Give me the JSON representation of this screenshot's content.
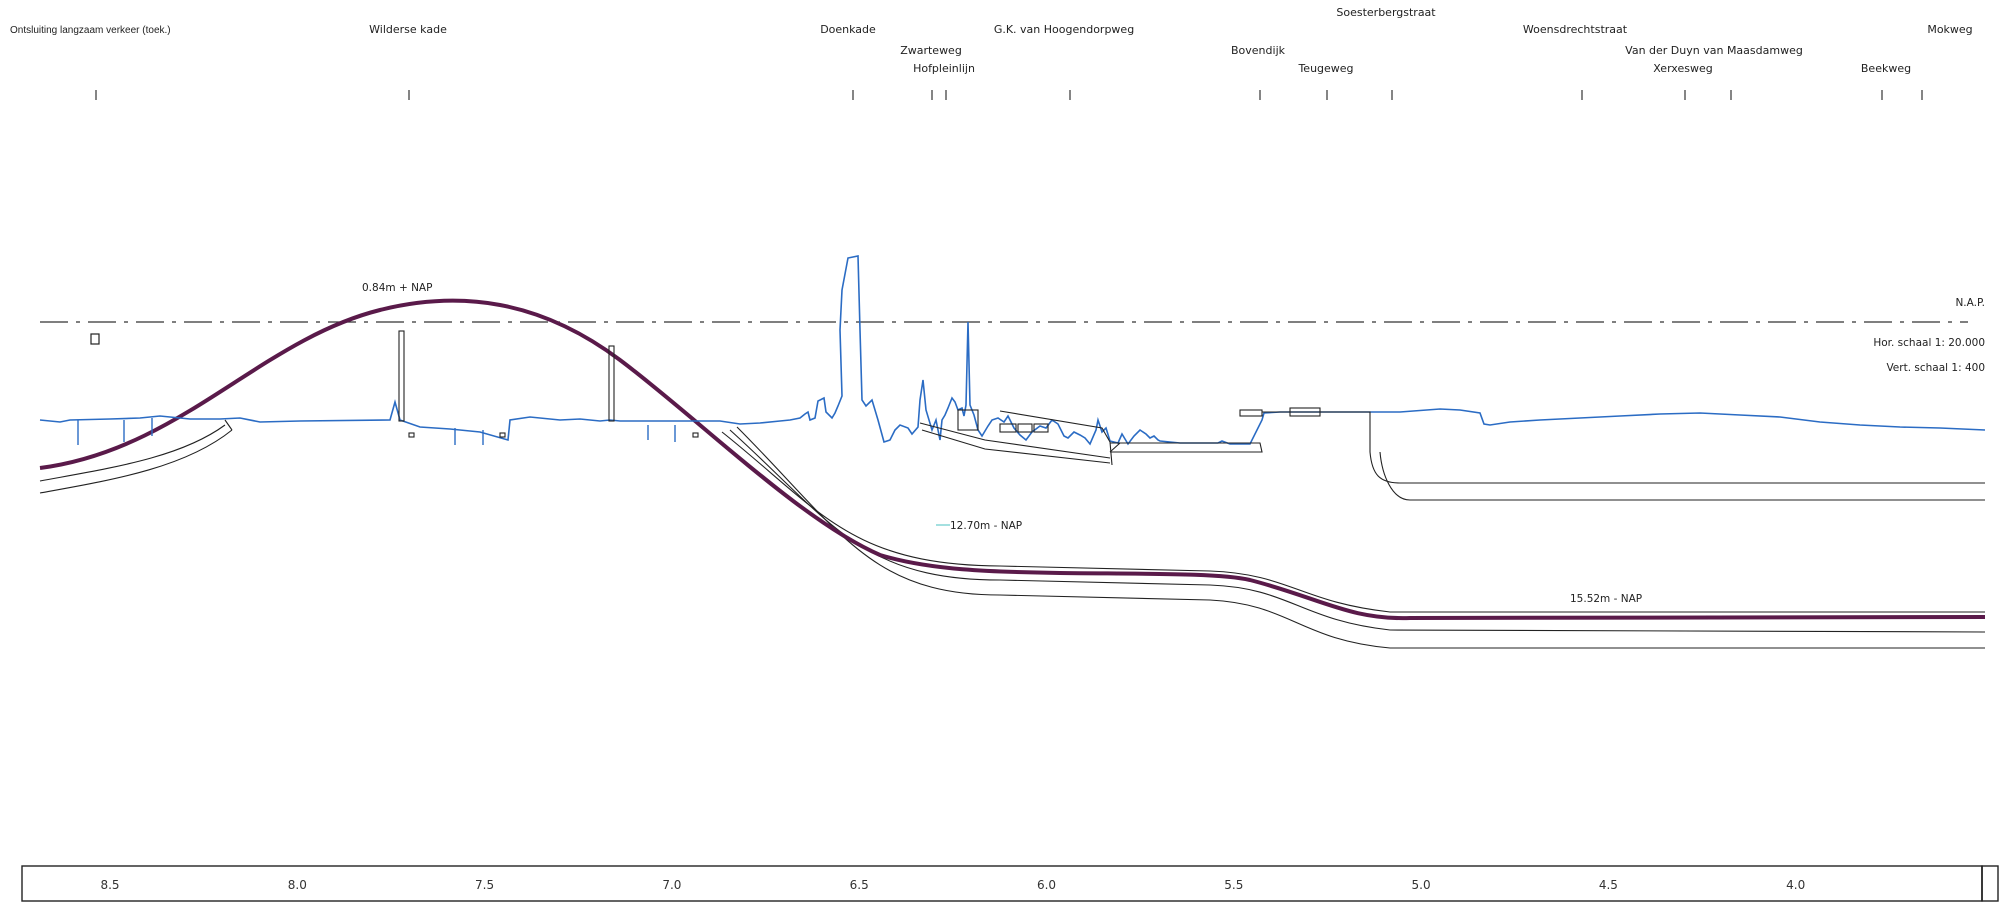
{
  "streets": [
    {
      "name": "Ontsluiting langzaam verkeer (toek.)",
      "km": 8.65
    },
    {
      "name": "Wilderse kade",
      "km": 7.75
    },
    {
      "name": "Doenkade",
      "km": 6.58
    },
    {
      "name": "Zwarteweg",
      "km": 6.37
    },
    {
      "name": "Hofpleinlijn",
      "km": 6.33
    },
    {
      "name": "G.K. van Hoogendorpweg",
      "km": 6.0
    },
    {
      "name": "Bovendijk",
      "km": 5.49
    },
    {
      "name": "Teugeweg",
      "km": 5.32
    },
    {
      "name": "Soesterbergstraat",
      "km": 5.16
    },
    {
      "name": "Woensdrechtstraat",
      "km": 4.65
    },
    {
      "name": "Van der Duyn van Maasdamweg",
      "km": 4.26
    },
    {
      "name": "Xerxesweg",
      "km": 4.38
    },
    {
      "name": "Beekweg",
      "km": 3.87
    },
    {
      "name": "Mokweg",
      "km": 3.76
    }
  ],
  "annotations": {
    "crest_depth": "0.84m + NAP",
    "mid_depth": "12.70m - NAP",
    "deep_depth": "15.52m - NAP",
    "nap_label": "N.A.P.",
    "hor_scale": "Hor.  schaal 1: 20.000",
    "vert_scale": "Vert.  schaal 1:  400"
  },
  "axis": {
    "ticks": [
      "8.5",
      "8.0",
      "7.5",
      "7.0",
      "6.5",
      "6.0",
      "5.5",
      "5.0",
      "4.5",
      "4.0"
    ]
  },
  "colors": {
    "tunnel": "#5a1a4a",
    "ground": "#2b6cc4",
    "structure": "#222222"
  }
}
